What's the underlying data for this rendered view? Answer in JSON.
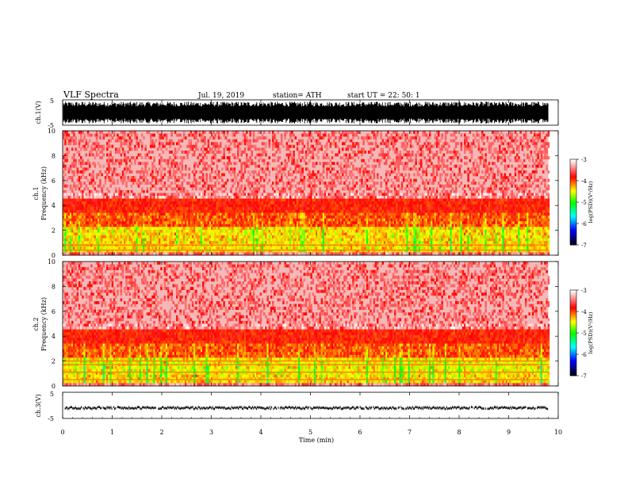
{
  "header": {
    "title": "VLF  Spectra",
    "date": "Jul.  19, 2019",
    "station": "station= ATH",
    "start": "start  UT  =    22: 50: 1"
  },
  "chart_data": [
    {
      "type": "line",
      "id": "ch1-waveform",
      "ylabel": "ch.1(V)",
      "yticks": [
        "5",
        "-5"
      ],
      "ylim": [
        -5,
        5
      ],
      "xlim": [
        0,
        10
      ],
      "x_end": 9.8,
      "amplitude": 4.3,
      "color": "#000000"
    },
    {
      "type": "heatmap",
      "id": "ch1-spectrogram",
      "ylabel_top": "ch.1",
      "ylabel": "Frequency  (kHz)",
      "yticks": [
        "0",
        "2",
        "4",
        "6",
        "8",
        "10"
      ],
      "ylim": [
        0,
        10
      ],
      "xlim": [
        0,
        10
      ],
      "x_end": 9.8,
      "colorbar": {
        "label": "log(PSD)(V²/Hz)",
        "ticks": [
          "-3",
          "-4",
          "-5",
          "-6",
          "-7"
        ],
        "range": [
          -7,
          -3
        ],
        "colors": [
          "#000000",
          "#0000ff",
          "#00ffff",
          "#00ff00",
          "#ffff00",
          "#ff0000",
          "#ffffff"
        ]
      }
    },
    {
      "type": "heatmap",
      "id": "ch2-spectrogram",
      "ylabel_top": "ch.2",
      "ylabel": "Frequency  (kHz)",
      "yticks": [
        "0",
        "2",
        "4",
        "6",
        "8",
        "10"
      ],
      "ylim": [
        0,
        10
      ],
      "xlim": [
        0,
        10
      ],
      "x_end": 9.8,
      "colorbar": {
        "label": "log(PSD)(V²/Hz)",
        "ticks": [
          "-3",
          "-4",
          "-5",
          "-6",
          "-7"
        ],
        "range": [
          -7,
          -3
        ],
        "colors": [
          "#000000",
          "#0000ff",
          "#00ffff",
          "#00ff00",
          "#ffff00",
          "#ff0000",
          "#ffffff"
        ]
      }
    },
    {
      "type": "line",
      "id": "ch3-waveform",
      "ylabel": "ch.3(V)",
      "yticks": [
        "5",
        "-5"
      ],
      "ylim": [
        -5,
        5
      ],
      "xlim": [
        0,
        10
      ],
      "x_end": 9.8,
      "level": -1,
      "xlabel": "Time  (min)",
      "xticks": [
        "0",
        "1",
        "2",
        "3",
        "4",
        "5",
        "6",
        "7",
        "8",
        "9",
        "10"
      ],
      "color": "#000000"
    }
  ]
}
